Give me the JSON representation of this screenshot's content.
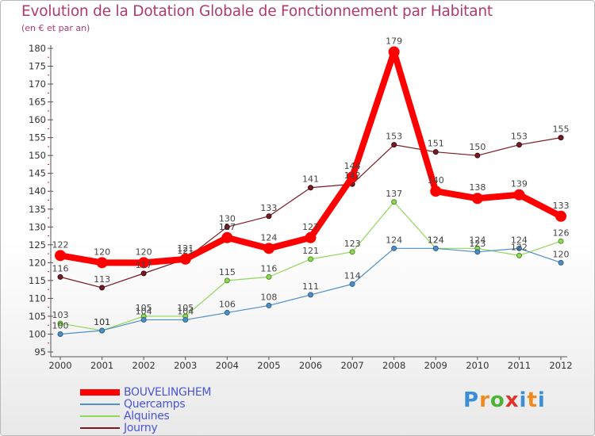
{
  "title": "Evolution de la Dotation Globale de Fonctionnement par Habitant",
  "subtitle": "(en € et par an)",
  "logo_text": "Proxiti",
  "colors": {
    "title": "#b03a6d",
    "legend_text": "#4a55d6",
    "axis": "#555555"
  },
  "chart_data": {
    "type": "line",
    "x": [
      "2000",
      "2001",
      "2002",
      "2003",
      "2004",
      "2005",
      "2006",
      "2007",
      "2008",
      "2009",
      "2010",
      "2011",
      "2012"
    ],
    "ylim": [
      95,
      180
    ],
    "yticks": [
      95,
      100,
      105,
      110,
      115,
      120,
      125,
      130,
      135,
      140,
      145,
      150,
      155,
      160,
      165,
      170,
      175,
      180
    ],
    "grid": false,
    "legend_position": "bottom-left",
    "series": [
      {
        "name": "BOUVELINGHEM",
        "color": "#ff0000",
        "values": [
          122,
          120,
          120,
          121,
          127,
          124,
          127,
          144,
          179,
          140,
          138,
          139,
          133
        ]
      },
      {
        "name": "Quercamps",
        "color": "#4f8fc8",
        "values": [
          100,
          101,
          104,
          104,
          106,
          108,
          111,
          114,
          124,
          124,
          123,
          124,
          120
        ]
      },
      {
        "name": "Alquines",
        "color": "#8fd85a",
        "values": [
          103,
          101,
          105,
          105,
          115,
          116,
          121,
          123,
          137,
          124,
          124,
          122,
          126
        ]
      },
      {
        "name": "Journy",
        "color": "#7a1a22",
        "values": [
          116,
          113,
          117,
          121,
          130,
          133,
          141,
          142,
          153,
          151,
          150,
          153,
          155
        ]
      }
    ]
  }
}
